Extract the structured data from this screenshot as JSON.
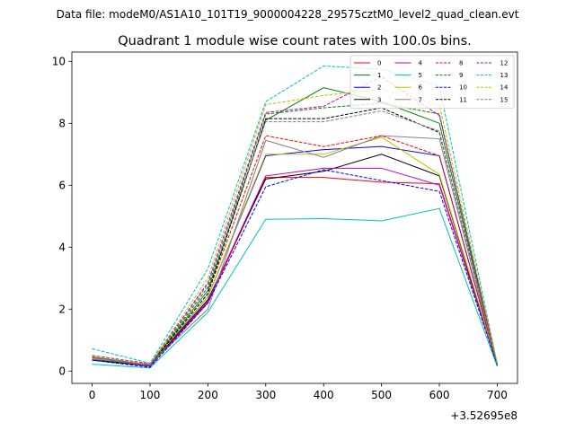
{
  "chart_data": {
    "type": "line",
    "suptitle": "Data file: modeM0/AS1A10_101T19_9000004228_29575cztM0_level2_quad_clean.evt",
    "title": "Quadrant 1 module wise count rates with 100.0s bins.",
    "xlabel": "",
    "ylabel": "",
    "x_offset_label": "+3.52695e8",
    "x": [
      0,
      100,
      200,
      300,
      400,
      500,
      600,
      700
    ],
    "xlim": [
      -35,
      735
    ],
    "ylim": [
      -0.4,
      10.3
    ],
    "xticks": [
      0,
      100,
      200,
      300,
      400,
      500,
      600,
      700
    ],
    "yticks": [
      0,
      2,
      4,
      6,
      8,
      10
    ],
    "grid": false,
    "legend_position": "upper-right",
    "legend_columns": 4,
    "series": [
      {
        "name": "0",
        "color": "#ff0000",
        "dash": "solid",
        "values": [
          0.4,
          0.18,
          2.2,
          6.25,
          6.25,
          6.1,
          6.05,
          0.25
        ]
      },
      {
        "name": "1",
        "color": "#008000",
        "dash": "solid",
        "values": [
          0.45,
          0.2,
          2.6,
          8.1,
          9.15,
          8.7,
          8.0,
          0.2
        ]
      },
      {
        "name": "2",
        "color": "#0000ff",
        "dash": "solid",
        "values": [
          0.38,
          0.15,
          2.4,
          6.95,
          7.15,
          7.25,
          6.95,
          0.2
        ]
      },
      {
        "name": "3",
        "color": "#000000",
        "dash": "solid",
        "values": [
          0.35,
          0.17,
          2.3,
          6.2,
          6.45,
          7.0,
          6.3,
          0.18
        ]
      },
      {
        "name": "4",
        "color": "#bf00bf",
        "dash": "solid",
        "values": [
          0.42,
          0.16,
          2.25,
          6.3,
          6.55,
          6.55,
          6.0,
          0.2
        ]
      },
      {
        "name": "5",
        "color": "#00bfbf",
        "dash": "solid",
        "values": [
          0.22,
          0.1,
          1.9,
          4.9,
          4.92,
          4.85,
          5.25,
          0.15
        ]
      },
      {
        "name": "6",
        "color": "#bfbf00",
        "dash": "solid",
        "values": [
          0.4,
          0.2,
          2.4,
          7.0,
          7.0,
          7.55,
          6.35,
          0.22
        ]
      },
      {
        "name": "7",
        "color": "#808080",
        "dash": "solid",
        "values": [
          0.38,
          0.22,
          2.0,
          7.45,
          6.9,
          7.6,
          7.5,
          0.15
        ]
      },
      {
        "name": "8",
        "color": "#ff0000",
        "dash": "dashed",
        "values": [
          0.5,
          0.2,
          2.5,
          7.6,
          7.25,
          7.6,
          6.95,
          0.2
        ]
      },
      {
        "name": "9",
        "color": "#008000",
        "dash": "dashed",
        "values": [
          0.48,
          0.22,
          2.7,
          8.3,
          8.5,
          8.65,
          8.3,
          0.2
        ]
      },
      {
        "name": "10",
        "color": "#0000ff",
        "dash": "dashed",
        "values": [
          0.35,
          0.12,
          2.2,
          5.95,
          6.5,
          6.15,
          5.8,
          0.18
        ]
      },
      {
        "name": "11",
        "color": "#000000",
        "dash": "dashed",
        "values": [
          0.45,
          0.2,
          2.5,
          8.15,
          8.15,
          8.5,
          7.7,
          0.22
        ]
      },
      {
        "name": "12",
        "color": "#bf00bf",
        "dash": "dashed",
        "values": [
          0.5,
          0.24,
          2.85,
          8.35,
          8.55,
          9.5,
          8.25,
          0.2
        ]
      },
      {
        "name": "13",
        "color": "#00bfbf",
        "dash": "dashed",
        "values": [
          0.72,
          0.25,
          3.3,
          8.7,
          9.85,
          9.75,
          9.2,
          0.22
        ]
      },
      {
        "name": "14",
        "color": "#bfbf00",
        "dash": "dashed",
        "values": [
          0.48,
          0.22,
          3.0,
          8.6,
          8.9,
          9.1,
          8.6,
          0.25
        ]
      },
      {
        "name": "15",
        "color": "#808080",
        "dash": "dashed",
        "values": [
          0.45,
          0.2,
          2.8,
          8.05,
          8.05,
          8.4,
          7.75,
          0.2
        ]
      }
    ]
  }
}
